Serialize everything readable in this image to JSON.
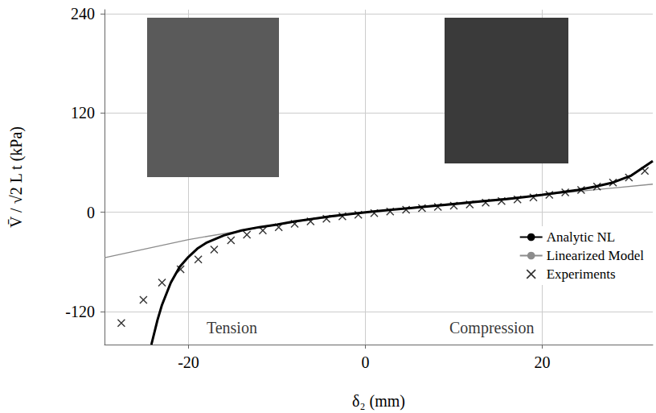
{
  "chart_data": {
    "type": "line",
    "x_label": "δ₂ (mm)",
    "y_label": "V̄ / √2 L t (kPa)",
    "xlim": [
      -29.5,
      32.5
    ],
    "ylim": [
      -160,
      245
    ],
    "xticks": [
      -20,
      0,
      20
    ],
    "yticks": [
      -120,
      0,
      120,
      240
    ],
    "grid": true,
    "legend": "lower right",
    "series": [
      {
        "name": "Analytic NL",
        "type": "line",
        "color": "#000000",
        "line_style": "solid",
        "x": [
          -24.2,
          -23.5,
          -23,
          -22,
          -21,
          -20,
          -19,
          -18,
          -16,
          -14,
          -12,
          -10,
          -8,
          -6,
          -4,
          -2,
          0,
          2,
          4,
          6,
          8,
          10,
          12,
          14,
          16,
          18,
          20,
          22,
          24,
          26,
          28,
          30,
          32.5
        ],
        "values": [
          -160,
          -130,
          -112,
          -85,
          -66,
          -54,
          -44,
          -37,
          -28,
          -22,
          -18,
          -15,
          -11,
          -8,
          -5,
          -2.5,
          0,
          2,
          4,
          6,
          8,
          10,
          12,
          14,
          16,
          18.5,
          21,
          24,
          27,
          31,
          36,
          44,
          62
        ]
      },
      {
        "name": "Linearized Model",
        "type": "line",
        "color": "#8c8c8c",
        "line_style": "solid",
        "x": [
          -29.5,
          -20,
          -10,
          0,
          10,
          20,
          32.5
        ],
        "values": [
          -55,
          -33,
          -15,
          0,
          11,
          21,
          34
        ]
      },
      {
        "name": "Experiments",
        "type": "scatter",
        "color": "#000000",
        "marker": "x",
        "x": [
          -27.6,
          -25.1,
          -23,
          -20.9,
          -18.9,
          -17.1,
          -15.2,
          -13.4,
          -11.6,
          -9.8,
          -8,
          -6.2,
          -4.4,
          -2.6,
          -0.8,
          1,
          2.8,
          4.6,
          6.4,
          8.2,
          10,
          11.8,
          13.6,
          15.4,
          17.2,
          19,
          20.8,
          22.6,
          24.4,
          26.2,
          28,
          29.8,
          31.6
        ],
        "values": [
          -134,
          -106,
          -85,
          -69,
          -57,
          -45,
          -34,
          -27,
          -22,
          -18,
          -14,
          -11,
          -8,
          -5,
          -3,
          -1,
          1,
          3,
          5,
          6.5,
          8,
          9.5,
          11.5,
          13.5,
          15.5,
          18,
          21,
          24,
          27,
          31,
          36,
          42,
          50
        ]
      }
    ],
    "annotations": [
      {
        "text": "Tension",
        "x": -15.1,
        "y": -140
      },
      {
        "text": "Compression",
        "x": 14.3,
        "y": -140
      }
    ]
  }
}
